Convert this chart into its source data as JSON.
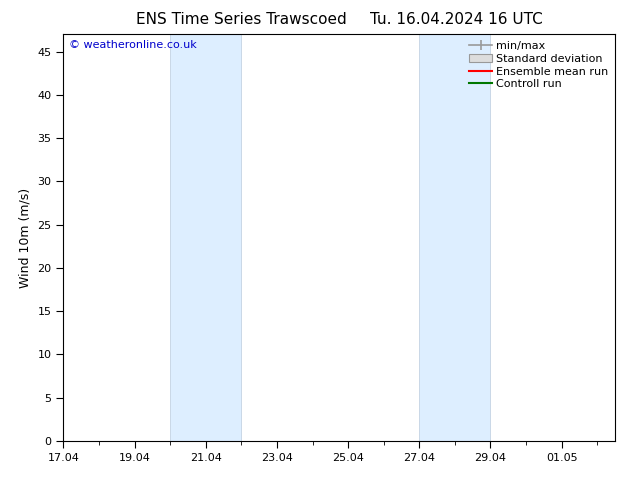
{
  "title_left": "ENS Time Series Trawscoed",
  "title_right": "Tu. 16.04.2024 16 UTC",
  "ylabel": "Wind 10m (m/s)",
  "ylim": [
    0,
    47
  ],
  "yticks": [
    0,
    5,
    10,
    15,
    20,
    25,
    30,
    35,
    40,
    45
  ],
  "xlim": [
    17.0,
    32.5
  ],
  "xtick_labels": [
    "17.04",
    "19.04",
    "21.04",
    "23.04",
    "25.04",
    "27.04",
    "29.04",
    "01.05"
  ],
  "xtick_positions": [
    17.0,
    19.0,
    21.0,
    23.0,
    25.0,
    27.0,
    29.0,
    31.0
  ],
  "shaded_bands": [
    {
      "xmin": 20.0,
      "xmax": 22.0
    },
    {
      "xmin": 27.0,
      "xmax": 29.0
    }
  ],
  "shade_color": "#ddeeff",
  "shade_edge_color": "#bbccdd",
  "watermark": "© weatheronline.co.uk",
  "watermark_color": "#0000cc",
  "legend_items": [
    {
      "label": "min/max",
      "color": "#999999",
      "style": "minmax"
    },
    {
      "label": "Standard deviation",
      "color": "#cccccc",
      "style": "stddev"
    },
    {
      "label": "Ensemble mean run",
      "color": "#ff0000",
      "style": "line"
    },
    {
      "label": "Controll run",
      "color": "#007700",
      "style": "line"
    }
  ],
  "bg_color": "#ffffff",
  "axes_bg_color": "#ffffff",
  "tick_color": "#000000",
  "label_fontsize": 9,
  "title_fontsize": 11,
  "tick_fontsize": 8,
  "watermark_fontsize": 8,
  "legend_fontsize": 8
}
